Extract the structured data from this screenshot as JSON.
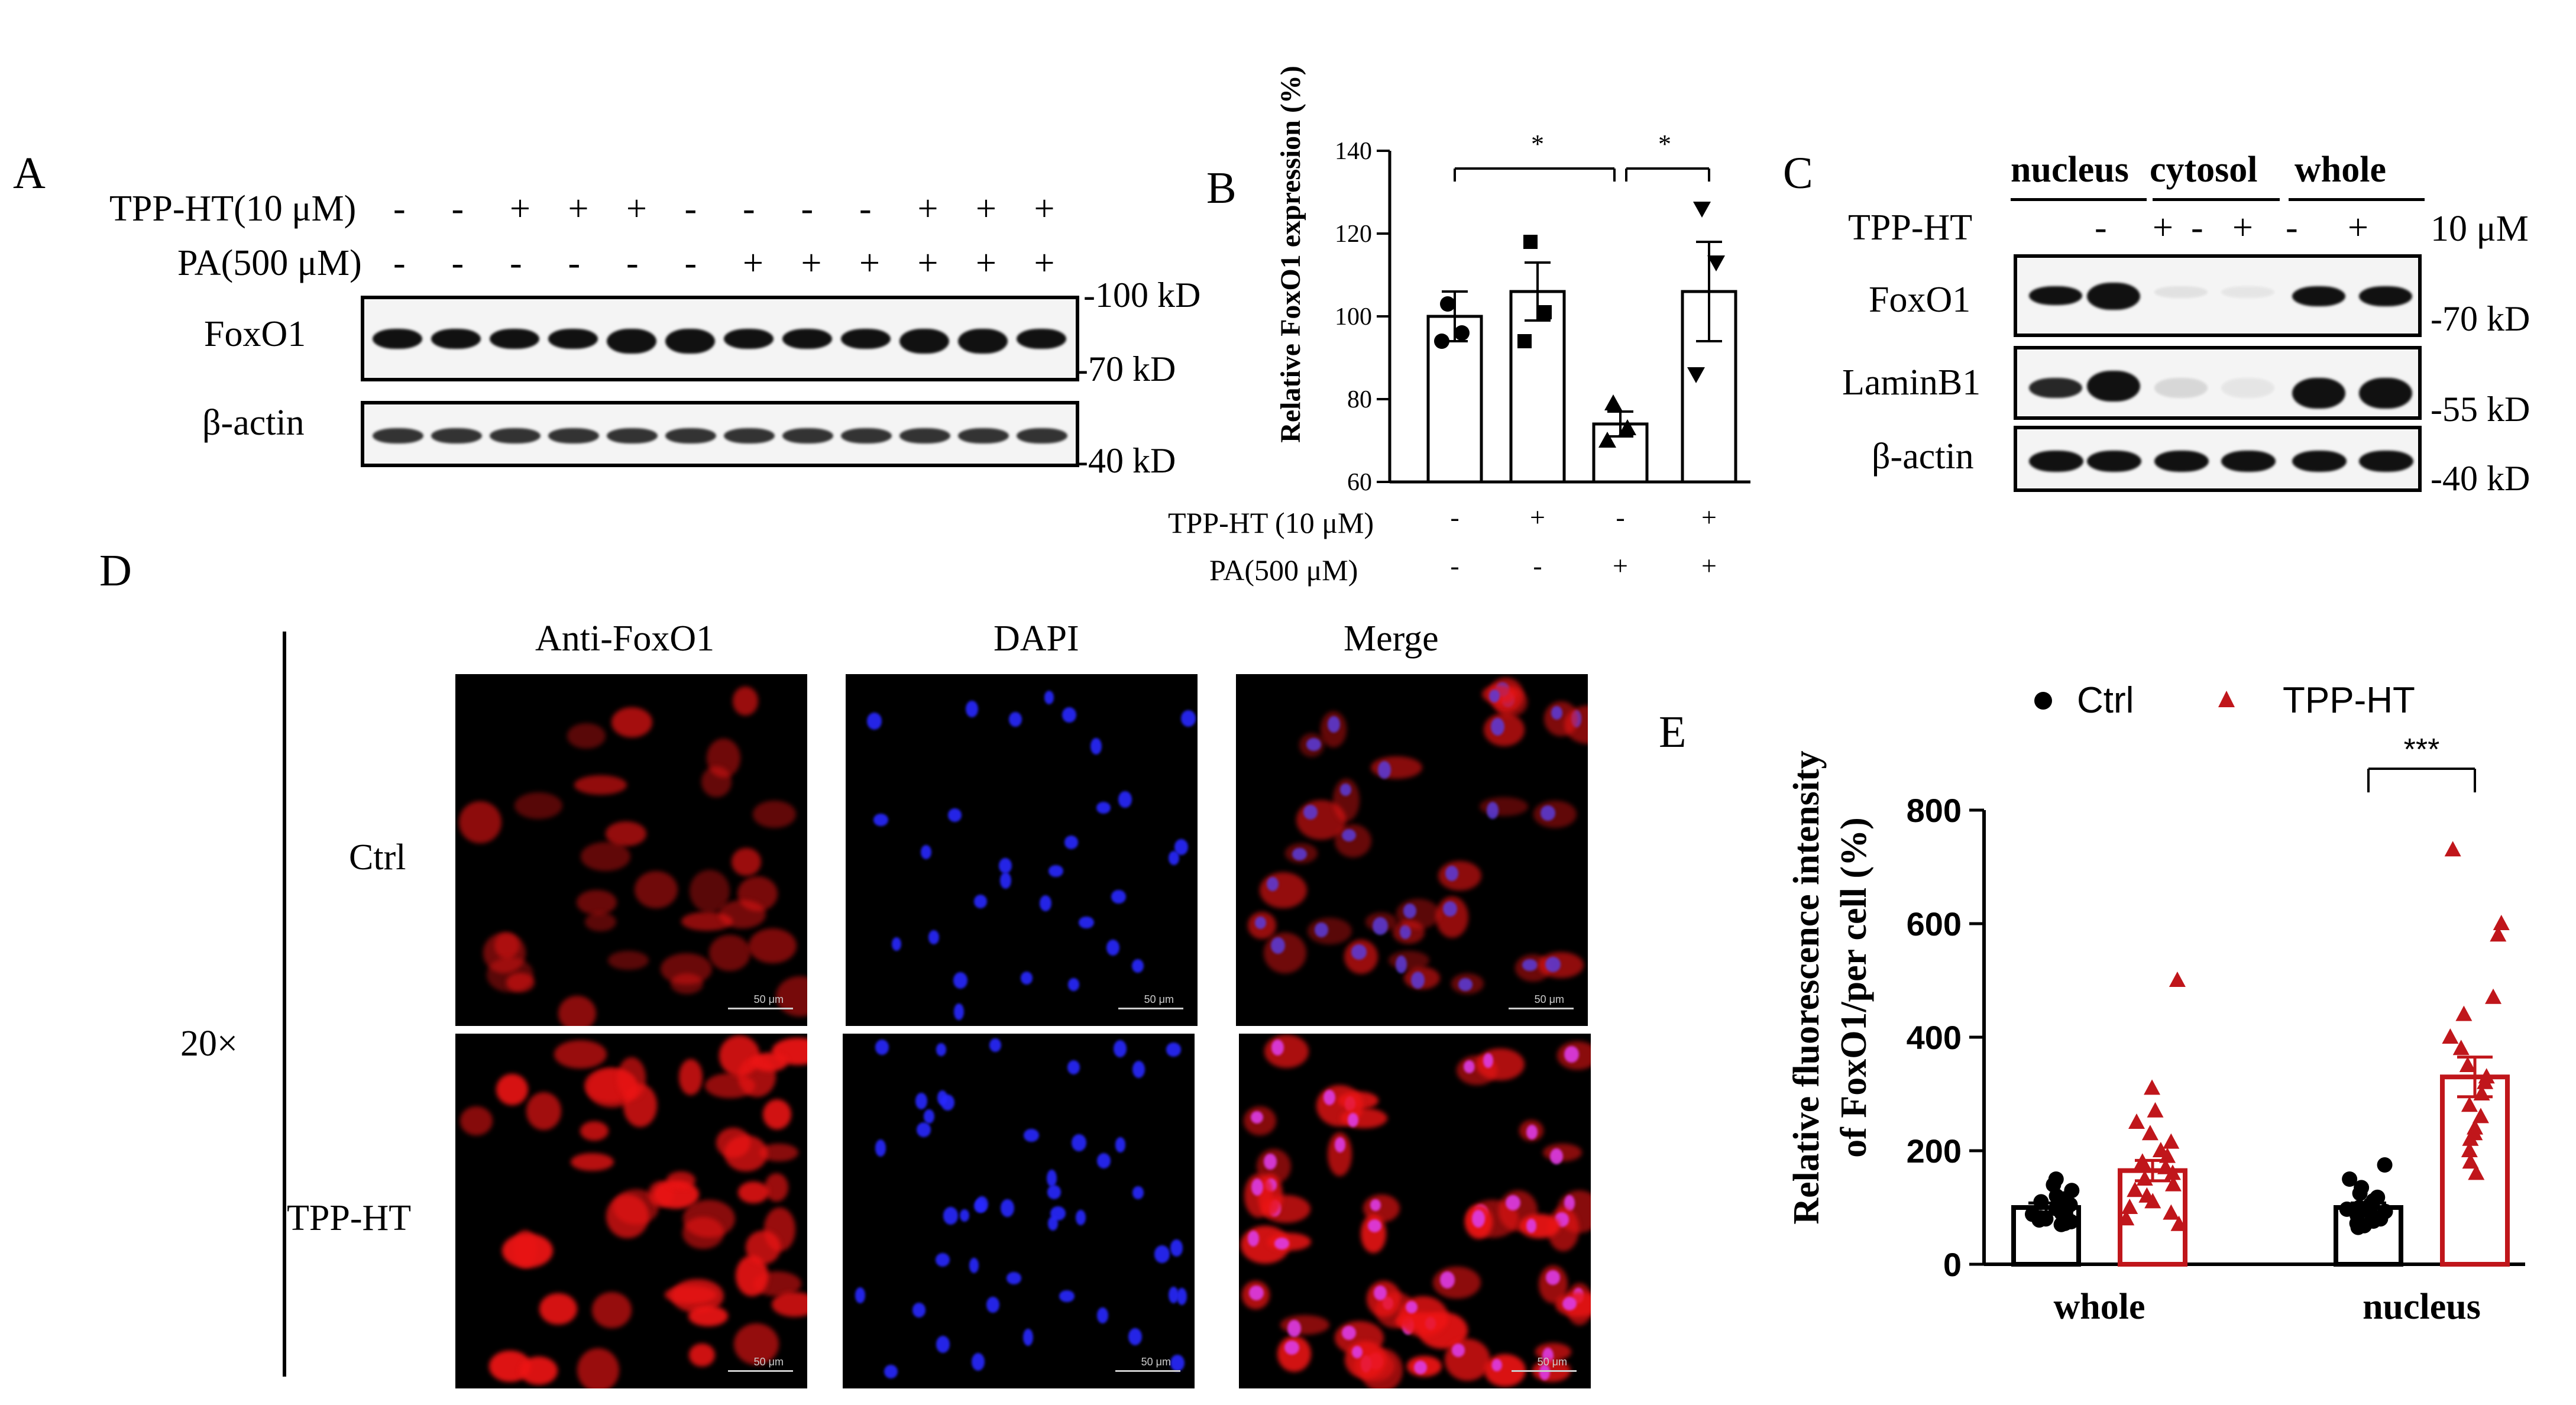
{
  "panelA": {
    "letter": "A",
    "row1_label": "TPP-HT(10 μM)",
    "row1_signs": [
      "-",
      "-",
      "+",
      "+",
      "+",
      "-",
      "-",
      "-",
      "-",
      "+",
      "+",
      "+"
    ],
    "row2_label": "PA(500 μM)",
    "row2_signs": [
      "-",
      "-",
      "-",
      "-",
      "-",
      "-",
      "+",
      "+",
      "+",
      "+",
      "+",
      "+"
    ],
    "blot1_label": "FoxO1",
    "blot2_label": "β-actin",
    "markers": [
      "-100 kD",
      "-70 kD",
      "-40 kD"
    ]
  },
  "panelB": {
    "letter": "B",
    "chart_data": {
      "type": "bar",
      "ylabel": "Relative FoxO1 expression (%)",
      "ylim": [
        60,
        140
      ],
      "yticks": [
        60,
        80,
        100,
        120,
        140
      ],
      "values": [
        100,
        106,
        74,
        106
      ],
      "errors": [
        6,
        7,
        3,
        12
      ],
      "points": [
        [
          103,
          96,
          94
        ],
        [
          118,
          101,
          94
        ],
        [
          79,
          73,
          70
        ],
        [
          126,
          113,
          86
        ]
      ],
      "markers": [
        "circle",
        "square",
        "triangle-up",
        "triangle-down"
      ],
      "xrow1_label": "TPP-HT (10 μM)",
      "xrow1_signs": [
        "-",
        "+",
        "-",
        "+"
      ],
      "xrow2_label": "PA(500 μM)",
      "xrow2_signs": [
        "-",
        "-",
        "+",
        "+"
      ],
      "significance": [
        {
          "from": 0,
          "to": 2,
          "label": "*"
        },
        {
          "from": 2,
          "to": 3,
          "label": "*"
        }
      ]
    }
  },
  "panelC": {
    "letter": "C",
    "groups": [
      "nucleus",
      "cytosol",
      "whole"
    ],
    "treatment_label": "TPP-HT",
    "signs": [
      "-",
      "+",
      "-",
      "+",
      "-",
      "+"
    ],
    "dose": "10 μM",
    "blots": [
      "FoxO1",
      "LaminB1",
      "β-actin"
    ],
    "markers": [
      "-70 kD",
      "-55 kD",
      "-40 kD"
    ]
  },
  "panelD": {
    "letter": "D",
    "columns": [
      "Anti-FoxO1",
      "DAPI",
      "Merge"
    ],
    "rows": [
      "Ctrl",
      "TPP-HT"
    ],
    "magnification": "20×",
    "scale_text": "50 μm"
  },
  "panelE": {
    "letter": "E",
    "chart_data": {
      "type": "bar",
      "ylabel_line1": "Relative fluorescence intensity",
      "ylabel_line2": "of FoxO1/per cell (%)",
      "ylim": [
        0,
        800
      ],
      "yticks": [
        0,
        200,
        400,
        600,
        800
      ],
      "categories": [
        "whole",
        "nucleus"
      ],
      "series": [
        {
          "name": "Ctrl",
          "color": "#000000",
          "marker": "circle",
          "values": [
            100,
            100
          ],
          "errors": [
            8,
            8
          ],
          "points": [
            [
              150,
              140,
              130,
              120,
              115,
              110,
              105,
              100,
              98,
              95,
              90,
              88,
              85,
              82,
              80,
              78,
              75,
              72,
              70
            ],
            [
              175,
              150,
              135,
              125,
              118,
              112,
              105,
              100,
              97,
              93,
              90,
              86,
              82,
              80,
              76,
              72,
              70,
              68,
              65
            ]
          ]
        },
        {
          "name": "TPP-HT",
          "color": "#c0161b",
          "marker": "triangle",
          "values": [
            165,
            330
          ],
          "errors": [
            18,
            35
          ],
          "points": [
            [
              500,
              310,
              270,
              250,
              230,
              215,
              200,
              190,
              180,
              170,
              160,
              150,
              140,
              130,
              120,
              110,
              100,
              90,
              80,
              70
            ],
            [
              730,
              600,
              580,
              470,
              440,
              400,
              380,
              350,
              330,
              320,
              300,
              280,
              260,
              240,
              230,
              220,
              200,
              180,
              160
            ]
          ]
        }
      ],
      "significance": [
        {
          "category": 1,
          "label": "***"
        }
      ],
      "legend_position": "top"
    }
  }
}
